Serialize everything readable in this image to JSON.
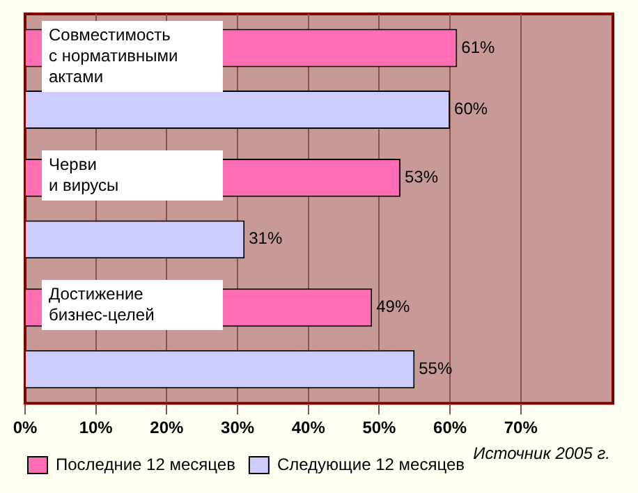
{
  "chart_data": {
    "type": "bar",
    "orientation": "horizontal",
    "categories": [
      "Совместимость\nс нормативными\nактами",
      "Черви\nи вирусы",
      "Достижение\nбизнес-целей"
    ],
    "series": [
      {
        "name": "Последние 12 месяцев",
        "color": "#ff6eb4",
        "values": [
          61,
          53,
          49
        ],
        "value_labels": [
          "61%",
          "53%",
          "49%"
        ]
      },
      {
        "name": "Следующие 12 месяцев",
        "color": "#ccccff",
        "values": [
          60,
          31,
          55
        ],
        "value_labels": [
          "60%",
          "31%",
          "55%"
        ]
      }
    ],
    "xlim": [
      0,
      83
    ],
    "xticks": [
      {
        "value": 0,
        "label": "0%"
      },
      {
        "value": 10,
        "label": "10%"
      },
      {
        "value": 20,
        "label": "20%"
      },
      {
        "value": 30,
        "label": "30%"
      },
      {
        "value": 40,
        "label": "40%"
      },
      {
        "value": 50,
        "label": "50%"
      },
      {
        "value": 60,
        "label": "60%"
      },
      {
        "value": 70,
        "label": "70%"
      }
    ],
    "grid": "x",
    "legend": "bottom left",
    "tick_labels": "x",
    "annotations": [
      "Источник 2005 г."
    ]
  }
}
